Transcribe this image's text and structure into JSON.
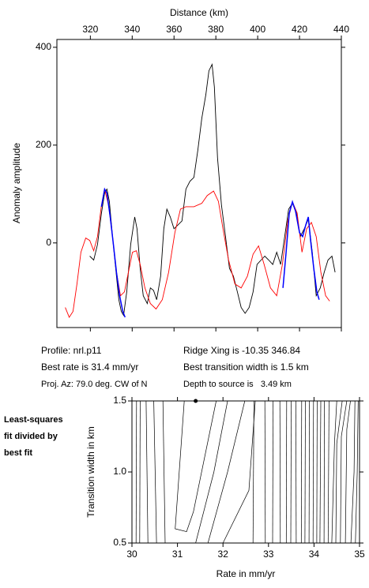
{
  "chart_data": [
    {
      "type": "line",
      "xlabel": "Distance (km)",
      "ylabel": "Anomaly amplitude",
      "xlim": [
        304,
        440
      ],
      "xticks": [
        320,
        340,
        360,
        380,
        400,
        420,
        440
      ],
      "ylim": [
        -173,
        416
      ],
      "yticks": [
        0,
        200,
        400
      ],
      "series": [
        {
          "color": "#000000",
          "x": [
            319.7,
            321.6,
            323.4,
            325.3,
            326.8,
            327.9,
            329.1,
            330.6,
            332.1,
            333.6,
            334.8,
            335.9,
            337.4,
            339.3,
            341.2,
            342.3,
            343.8,
            345.3,
            347.2,
            348.7,
            350.2,
            351.7,
            353.6,
            355.1,
            356.6,
            358.2,
            360.0,
            361.9,
            363.8,
            365.7,
            367.6,
            369.5,
            371.4,
            373.3,
            375.2,
            376.7,
            378.2,
            379.3,
            380.8,
            382.7,
            384.6,
            386.5,
            388.4,
            390.3,
            392.1,
            394.0,
            395.9,
            397.8,
            399.7,
            401.6,
            403.4,
            405.3,
            407.2,
            409.1,
            411.0,
            412.9,
            414.8,
            416.6,
            418.5,
            420.4,
            422.3,
            424.2,
            426.1,
            428.0,
            429.9,
            431.8,
            433.6,
            435.5,
            437.0
          ],
          "values": [
            -27,
            -35,
            -3,
            61,
            102,
            110,
            85,
            13,
            -52,
            -116,
            -140,
            -148,
            -100,
            -3,
            53,
            29,
            -52,
            -108,
            -124,
            -92,
            -97,
            -116,
            -68,
            29,
            69,
            53,
            29,
            37,
            45,
            110,
            126,
            134,
            190,
            255,
            303,
            352,
            365,
            319,
            174,
            77,
            13,
            -52,
            -68,
            -100,
            -132,
            -144,
            -132,
            -100,
            -44,
            -35,
            -27,
            -35,
            -44,
            -19,
            -44,
            13,
            69,
            81,
            61,
            13,
            29,
            48,
            -19,
            -108,
            -92,
            -60,
            -35,
            -27,
            -60
          ]
        },
        {
          "color": "#ff0000",
          "x": [
            308.0,
            309.9,
            311.7,
            313.6,
            315.5,
            317.8,
            319.7,
            321.6,
            323.4,
            325.3,
            326.8,
            328.7,
            330.6,
            332.5,
            334.4,
            336.3,
            338.2,
            340.1,
            342.0,
            343.8,
            346.1,
            348.7,
            351.4,
            354.4,
            357.4,
            360.4,
            363.1,
            365.7,
            369.5,
            373.3,
            375.9,
            378.9,
            381.2,
            383.4,
            386.1,
            389.1,
            392.1,
            395.1,
            397.8,
            400.4,
            403.1,
            406.1,
            409.1,
            411.8,
            414.4,
            416.6,
            418.9,
            421.2,
            423.4,
            425.7,
            428.0,
            430.2,
            432.5,
            434.4
          ],
          "values": [
            -132,
            -152,
            -140,
            -84,
            -19,
            10,
            5,
            -16,
            13,
            77,
            110,
            77,
            13,
            -60,
            -108,
            -100,
            -60,
            -19,
            -16,
            -44,
            -92,
            -124,
            -135,
            -116,
            -60,
            21,
            69,
            74,
            74,
            81,
            97,
            106,
            85,
            29,
            -35,
            -84,
            -92,
            -68,
            -23,
            -6,
            -44,
            -92,
            -108,
            -44,
            45,
            84,
            61,
            -19,
            29,
            42,
            13,
            -60,
            -108,
            -119
          ]
        },
        {
          "color": "#0000ff",
          "x": [
            325.3,
            326.8,
            327.9,
            329.5,
            331.0,
            332.5,
            334.0,
            335.5,
            336.6,
            null,
            412.1,
            413.6,
            415.1,
            416.6,
            418.1,
            420.0,
            421.5,
            423.0,
            424.2,
            425.3,
            426.8,
            428.3,
            429.4
          ],
          "values": [
            74,
            110,
            102,
            53,
            -3,
            -60,
            -108,
            -140,
            -152,
            null,
            -92,
            -19,
            61,
            84,
            65,
            21,
            13,
            37,
            53,
            5,
            -52,
            -100,
            -116
          ]
        }
      ],
      "annotations": [
        "Profile: nrl.p11",
        "Best rate is 31.4 mm/yr",
        "Proj. Az: 79.0 deg. CW of N",
        "Ridge Xing is -10.35 346.84",
        "Best transition width is 1.5 km",
        "Depth to source is   3.49 km"
      ]
    },
    {
      "type": "contour",
      "xlabel": "Rate in mm/yr",
      "ylabel": "Transition width in km",
      "xlim": [
        30,
        35
      ],
      "xticks": [
        30,
        31,
        32,
        33,
        34,
        35
      ],
      "ylim": [
        0.5,
        1.5
      ],
      "yticks": [
        0.5,
        {
          "value": 1,
          "label": "1.0"
        },
        1.5
      ],
      "annotations": [
        "Least-squares",
        "fit divided by",
        "best fit"
      ],
      "best": {
        "x": 31.4,
        "y": 1.5
      },
      "contours": [
        {
          "x": [
            30.09,
            30.1
          ],
          "y": [
            0.5,
            1.5
          ]
        },
        {
          "x": [
            30.17,
            30.18
          ],
          "y": [
            0.5,
            1.5
          ]
        },
        {
          "x": [
            30.35,
            30.31
          ],
          "y": [
            0.5,
            1.5
          ]
        },
        {
          "x": [
            30.54,
            30.48
          ],
          "y": [
            0.5,
            1.5
          ]
        },
        {
          "x": [
            30.73,
            30.68
          ],
          "y": [
            0.5,
            1.5
          ]
        },
        {
          "x": [
            31.15,
            30.95,
            31.2,
            31.35,
            31.85
          ],
          "y": [
            1.5,
            0.6,
            0.58,
            0.72,
            1.5
          ]
        },
        {
          "x": [
            31.4,
            31.8,
            32.1
          ],
          "y": [
            0.5,
            1.0,
            1.5
          ]
        },
        {
          "x": [
            31.67,
            32.1,
            32.48
          ],
          "y": [
            0.5,
            1.0,
            1.5
          ]
        },
        {
          "x": [
            32.0,
            32.57,
            32.71
          ],
          "y": [
            0.5,
            0.87,
            1.5
          ]
        },
        {
          "x": [
            32.66,
            32.68
          ],
          "y": [
            0.5,
            1.5
          ]
        },
        {
          "x": [
            32.93,
            32.92
          ],
          "y": [
            0.5,
            1.5
          ]
        },
        {
          "x": [
            33.09,
            33.1
          ],
          "y": [
            0.5,
            1.5
          ]
        },
        {
          "x": [
            33.26,
            33.25
          ],
          "y": [
            0.5,
            1.5
          ]
        },
        {
          "x": [
            33.39,
            33.4
          ],
          "y": [
            0.5,
            1.5
          ]
        },
        {
          "x": [
            33.49,
            33.5
          ],
          "y": [
            0.5,
            1.5
          ]
        },
        {
          "x": [
            33.61,
            33.6
          ],
          "y": [
            0.5,
            1.5
          ]
        },
        {
          "x": [
            33.72,
            33.73
          ],
          "y": [
            0.5,
            1.5
          ]
        },
        {
          "x": [
            33.8,
            33.81
          ],
          "y": [
            0.5,
            1.5
          ]
        },
        {
          "x": [
            33.89,
            33.9
          ],
          "y": [
            0.5,
            1.5
          ]
        },
        {
          "x": [
            33.98,
            33.99
          ],
          "y": [
            0.5,
            1.5
          ]
        },
        {
          "x": [
            34.06,
            34.07
          ],
          "y": [
            0.5,
            1.5
          ]
        },
        {
          "x": [
            34.13,
            34.15
          ],
          "y": [
            0.5,
            1.5
          ]
        },
        {
          "x": [
            34.22,
            34.23
          ],
          "y": [
            0.5,
            1.5
          ]
        },
        {
          "x": [
            34.31,
            34.33
          ],
          "y": [
            0.5,
            1.5
          ]
        },
        {
          "x": [
            34.39,
            34.45,
            34.5
          ],
          "y": [
            0.5,
            1.2,
            1.5
          ]
        },
        {
          "x": [
            34.48,
            34.5,
            34.62
          ],
          "y": [
            0.5,
            1.2,
            1.5
          ]
        },
        {
          "x": [
            34.58,
            34.6,
            34.72
          ],
          "y": [
            0.5,
            1.25,
            1.5
          ]
        },
        {
          "x": [
            34.69,
            34.72,
            34.8
          ],
          "y": [
            0.5,
            1.3,
            1.5
          ]
        },
        {
          "x": [
            34.81,
            34.88,
            34.9
          ],
          "y": [
            0.5,
            1.0,
            1.5
          ]
        },
        {
          "x": [
            34.91,
            34.95,
            34.97
          ],
          "y": [
            0.5,
            1.0,
            1.5
          ]
        }
      ]
    }
  ]
}
